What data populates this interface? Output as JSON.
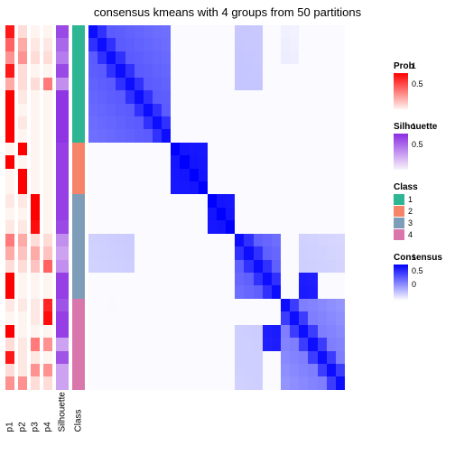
{
  "title": "consensus kmeans with 4 groups from 50 partitions",
  "layout": {
    "heatmap_size": 284,
    "anno_height": 404,
    "narrow_w": 10,
    "wide_w": 14,
    "gap": 4,
    "n": 28
  },
  "colors": {
    "prob": {
      "low": "#fef4f0",
      "high": "#ff0000"
    },
    "silhouette": {
      "low": "#f9f3fb",
      "high": "#8a2be2"
    },
    "consensus": {
      "low": "#ffffff",
      "high": "#0000ff"
    },
    "class": {
      "1": "#2eb594",
      "2": "#f58468",
      "3": "#7e9db8",
      "4": "#d977ad"
    },
    "text": "#000000",
    "bg": "#ffffff"
  },
  "annotations": {
    "labels": [
      "p1",
      "p2",
      "p3",
      "p4",
      "Silhouette",
      "Class"
    ],
    "widths": [
      "narrow",
      "narrow",
      "narrow",
      "narrow",
      "wide",
      "wide"
    ],
    "p1": [
      0.9,
      0.6,
      0.4,
      0.9,
      0.3,
      1.0,
      1.0,
      1.0,
      1.0,
      0.0,
      1.0,
      0.0,
      0.0,
      0.05,
      0.0,
      0.05,
      0.5,
      0.3,
      0.1,
      1.0,
      1.0,
      0.05,
      0.0,
      1.0,
      0.1,
      0.9,
      0.1,
      0.4
    ],
    "p2": [
      0.1,
      0.3,
      0.4,
      0.1,
      0.1,
      0.05,
      0.0,
      0.05,
      0.0,
      1.0,
      0.0,
      1.0,
      1.0,
      0.05,
      0.0,
      0.05,
      0.3,
      0.2,
      0.1,
      0.0,
      0.0,
      0.05,
      0.0,
      0.0,
      0.05,
      0.05,
      0.05,
      0.4
    ],
    "p3": [
      0.0,
      0.05,
      0.1,
      0.0,
      0.1,
      0.0,
      0.0,
      0.0,
      0.0,
      0.0,
      0.0,
      0.0,
      0.0,
      1.0,
      1.0,
      0.95,
      0.1,
      0.3,
      0.2,
      0.0,
      0.0,
      0.05,
      0.05,
      0.0,
      0.5,
      0.05,
      0.4,
      0.1
    ],
    "p4": [
      0.0,
      0.05,
      0.1,
      0.0,
      0.5,
      0.0,
      0.0,
      0.0,
      0.0,
      0.0,
      0.0,
      0.0,
      0.0,
      0.0,
      0.0,
      0.0,
      0.1,
      0.2,
      0.6,
      0.0,
      0.0,
      0.85,
      0.95,
      0.0,
      0.4,
      0.0,
      0.4,
      0.1
    ],
    "silhouette": [
      0.85,
      0.7,
      0.6,
      0.85,
      0.5,
      0.95,
      0.95,
      0.95,
      0.95,
      0.9,
      0.9,
      0.9,
      0.9,
      0.9,
      0.9,
      0.85,
      0.5,
      0.4,
      0.5,
      0.9,
      0.9,
      0.8,
      0.9,
      0.9,
      0.4,
      0.8,
      0.4,
      0.4
    ],
    "class": [
      1,
      1,
      1,
      1,
      1,
      1,
      1,
      1,
      1,
      2,
      2,
      2,
      2,
      3,
      3,
      3,
      3,
      3,
      3,
      3,
      3,
      4,
      4,
      4,
      4,
      4,
      4,
      4
    ]
  },
  "consensus_blocks": [
    {
      "r0": 0,
      "r1": 8,
      "c0": 0,
      "c1": 8,
      "base": 0.55,
      "diag": 0.95
    },
    {
      "r0": 9,
      "r1": 12,
      "c0": 9,
      "c1": 12,
      "base": 0.9,
      "diag": 1.0
    },
    {
      "r0": 13,
      "r1": 15,
      "c0": 13,
      "c1": 15,
      "base": 0.9,
      "diag": 1.0
    },
    {
      "r0": 16,
      "r1": 20,
      "c0": 16,
      "c1": 20,
      "base": 0.55,
      "diag": 0.95
    },
    {
      "r0": 21,
      "r1": 27,
      "c0": 21,
      "c1": 27,
      "base": 0.4,
      "diag": 0.9
    },
    {
      "r0": 19,
      "r1": 20,
      "c0": 23,
      "c1": 24,
      "base": 0.9,
      "diag": 0.95
    },
    {
      "r0": 23,
      "r1": 24,
      "c0": 19,
      "c1": 20,
      "base": 0.9,
      "diag": 0.95
    },
    {
      "r0": 0,
      "r1": 4,
      "c0": 16,
      "c1": 18,
      "base": 0.25,
      "diag": 0.3
    },
    {
      "r0": 16,
      "r1": 18,
      "c0": 0,
      "c1": 4,
      "base": 0.25,
      "diag": 0.3
    },
    {
      "r0": 0,
      "r1": 2,
      "c0": 21,
      "c1": 22,
      "base": 0.15,
      "diag": 0.2
    },
    {
      "r0": 21,
      "r1": 22,
      "c0": 0,
      "c1": 2,
      "base": 0.15,
      "diag": 0.2
    },
    {
      "r0": 23,
      "r1": 27,
      "c0": 16,
      "c1": 18,
      "base": 0.2,
      "diag": 0.25
    },
    {
      "r0": 16,
      "r1": 18,
      "c0": 23,
      "c1": 27,
      "base": 0.2,
      "diag": 0.25
    }
  ],
  "legends": {
    "prob": {
      "title": "Prob",
      "ticks": [
        "1",
        "0.5",
        ""
      ],
      "grad": [
        "#ff0000",
        "#fef4f0"
      ]
    },
    "silhouette": {
      "title": "Silhouette",
      "ticks": [
        "1",
        "0.5",
        ""
      ],
      "grad": [
        "#8a2be2",
        "#f9f3fb"
      ]
    },
    "class": {
      "title": "Class",
      "items": [
        [
          "1",
          "#2eb594"
        ],
        [
          "2",
          "#f58468"
        ],
        [
          "3",
          "#7e9db8"
        ],
        [
          "4",
          "#d977ad"
        ]
      ]
    },
    "consensus": {
      "title": "Consensus",
      "ticks": [
        "1",
        "0.5",
        "0"
      ],
      "grad": [
        "#0000ff",
        "#ffffff"
      ]
    }
  }
}
